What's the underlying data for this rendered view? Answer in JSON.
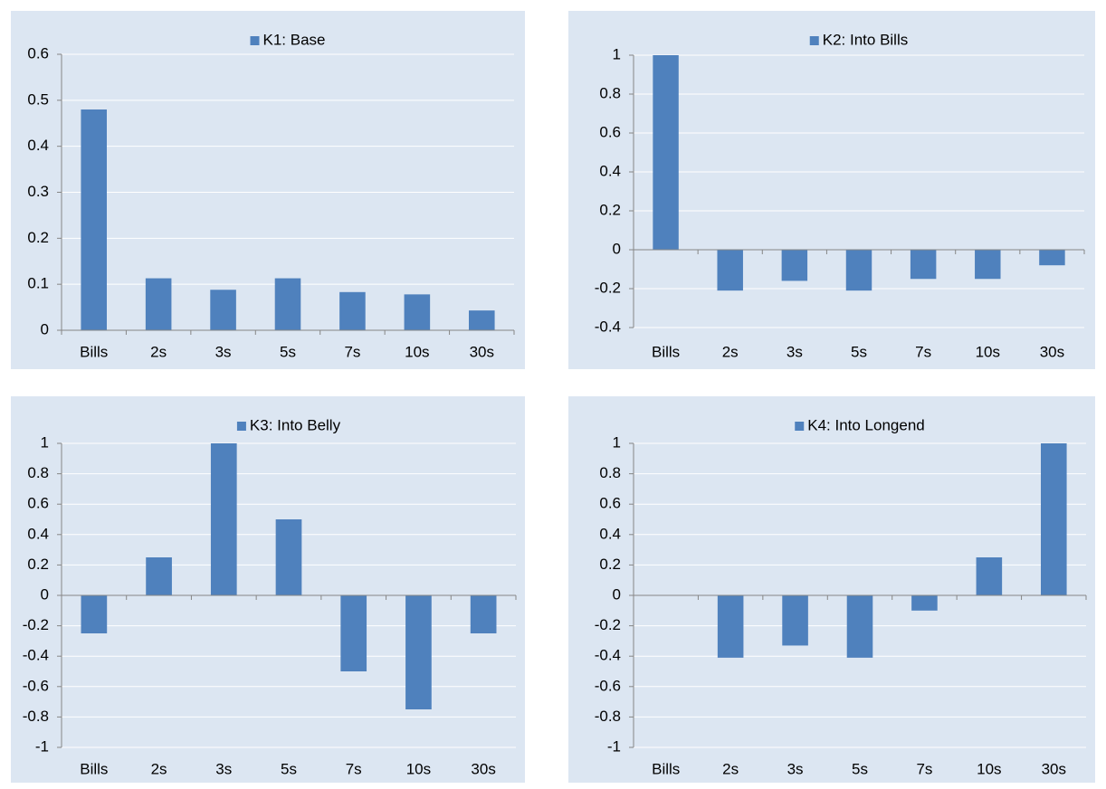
{
  "chart_data": [
    {
      "type": "bar",
      "categories": [
        "Bills",
        "2s",
        "3s",
        "5s",
        "7s",
        "10s",
        "30s"
      ],
      "series": [
        {
          "name": "K1: Base",
          "color": "#4f81bd",
          "values": [
            0.48,
            0.113,
            0.088,
            0.113,
            0.083,
            0.078,
            0.043
          ]
        }
      ],
      "ylim": [
        0,
        0.6
      ],
      "yticks": [
        0,
        0.1,
        0.2,
        0.3,
        0.4,
        0.5,
        0.6
      ],
      "grid": true,
      "legend": "top"
    },
    {
      "type": "bar",
      "categories": [
        "Bills",
        "2s",
        "3s",
        "5s",
        "7s",
        "10s",
        "30s"
      ],
      "series": [
        {
          "name": "K2: Into Bills",
          "color": "#4f81bd",
          "values": [
            1,
            -0.21,
            -0.16,
            -0.21,
            -0.15,
            -0.15,
            -0.08
          ]
        }
      ],
      "ylim": [
        -0.4,
        1
      ],
      "yticks": [
        -0.4,
        -0.2,
        0,
        0.2,
        0.4,
        0.6,
        0.8,
        1
      ],
      "grid": true,
      "legend": "top"
    },
    {
      "type": "bar",
      "categories": [
        "Bills",
        "2s",
        "3s",
        "5s",
        "7s",
        "10s",
        "30s"
      ],
      "series": [
        {
          "name": "K3: Into Belly",
          "color": "#4f81bd",
          "values": [
            -0.25,
            0.25,
            1,
            0.5,
            -0.5,
            -0.75,
            -0.25
          ]
        }
      ],
      "ylim": [
        -1,
        1
      ],
      "yticks": [
        -1,
        -0.8,
        -0.6,
        -0.4,
        -0.2,
        0,
        0.2,
        0.4,
        0.6,
        0.8,
        1
      ],
      "grid": true,
      "legend": "top"
    },
    {
      "type": "bar",
      "categories": [
        "Bills",
        "2s",
        "3s",
        "5s",
        "7s",
        "10s",
        "30s"
      ],
      "series": [
        {
          "name": "K4: Into Longend",
          "color": "#4f81bd",
          "values": [
            0,
            -0.41,
            -0.33,
            -0.41,
            -0.1,
            0.25,
            1
          ]
        }
      ],
      "ylim": [
        -1,
        1
      ],
      "yticks": [
        -1,
        -0.8,
        -0.6,
        -0.4,
        -0.2,
        0,
        0.2,
        0.4,
        0.6,
        0.8,
        1
      ],
      "grid": true,
      "legend": "top"
    }
  ]
}
